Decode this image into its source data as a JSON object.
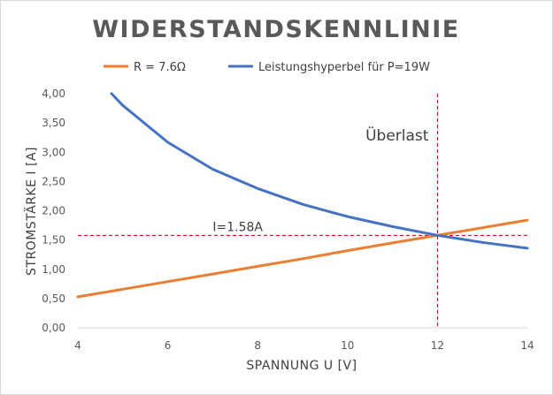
{
  "chart_data": {
    "type": "line",
    "title": "WIDERSTANDSKENNLINIE",
    "xlabel": "SPANNUNG U [V]",
    "ylabel": "STROMSTÄRKE I [A]",
    "xlim": [
      4,
      14
    ],
    "ylim": [
      0,
      4
    ],
    "x_ticks": [
      "4",
      "6",
      "8",
      "10",
      "12",
      "14"
    ],
    "y_ticks": [
      "0,00",
      "0,50",
      "1,00",
      "1,50",
      "2,00",
      "2,50",
      "3,00",
      "3,50",
      "4,00"
    ],
    "legend_position": "top",
    "grid": false,
    "series": [
      {
        "name": "R = 7.6Ω",
        "color": "#ED7D31",
        "x": [
          4,
          5,
          6,
          7,
          8,
          9,
          10,
          11,
          12,
          13,
          14
        ],
        "y": [
          0.53,
          0.66,
          0.79,
          0.92,
          1.05,
          1.18,
          1.32,
          1.45,
          1.58,
          1.71,
          1.84
        ]
      },
      {
        "name": "Leistungshyperbel für P=19W",
        "color": "#4472C4",
        "x": [
          4.75,
          5,
          6,
          7,
          8,
          9,
          10,
          11,
          12,
          13,
          14
        ],
        "y": [
          4.0,
          3.8,
          3.17,
          2.71,
          2.38,
          2.11,
          1.9,
          1.73,
          1.58,
          1.46,
          1.36
        ]
      }
    ],
    "reference_lines": {
      "vertical_x": 12,
      "horizontal_y": 1.58,
      "color": "#C00000"
    },
    "annotations": [
      {
        "text": "Überlast",
        "x": 10.4,
        "y": 3.2
      },
      {
        "text": "I=1.58A",
        "x": 7.0,
        "y": 1.65
      }
    ]
  }
}
